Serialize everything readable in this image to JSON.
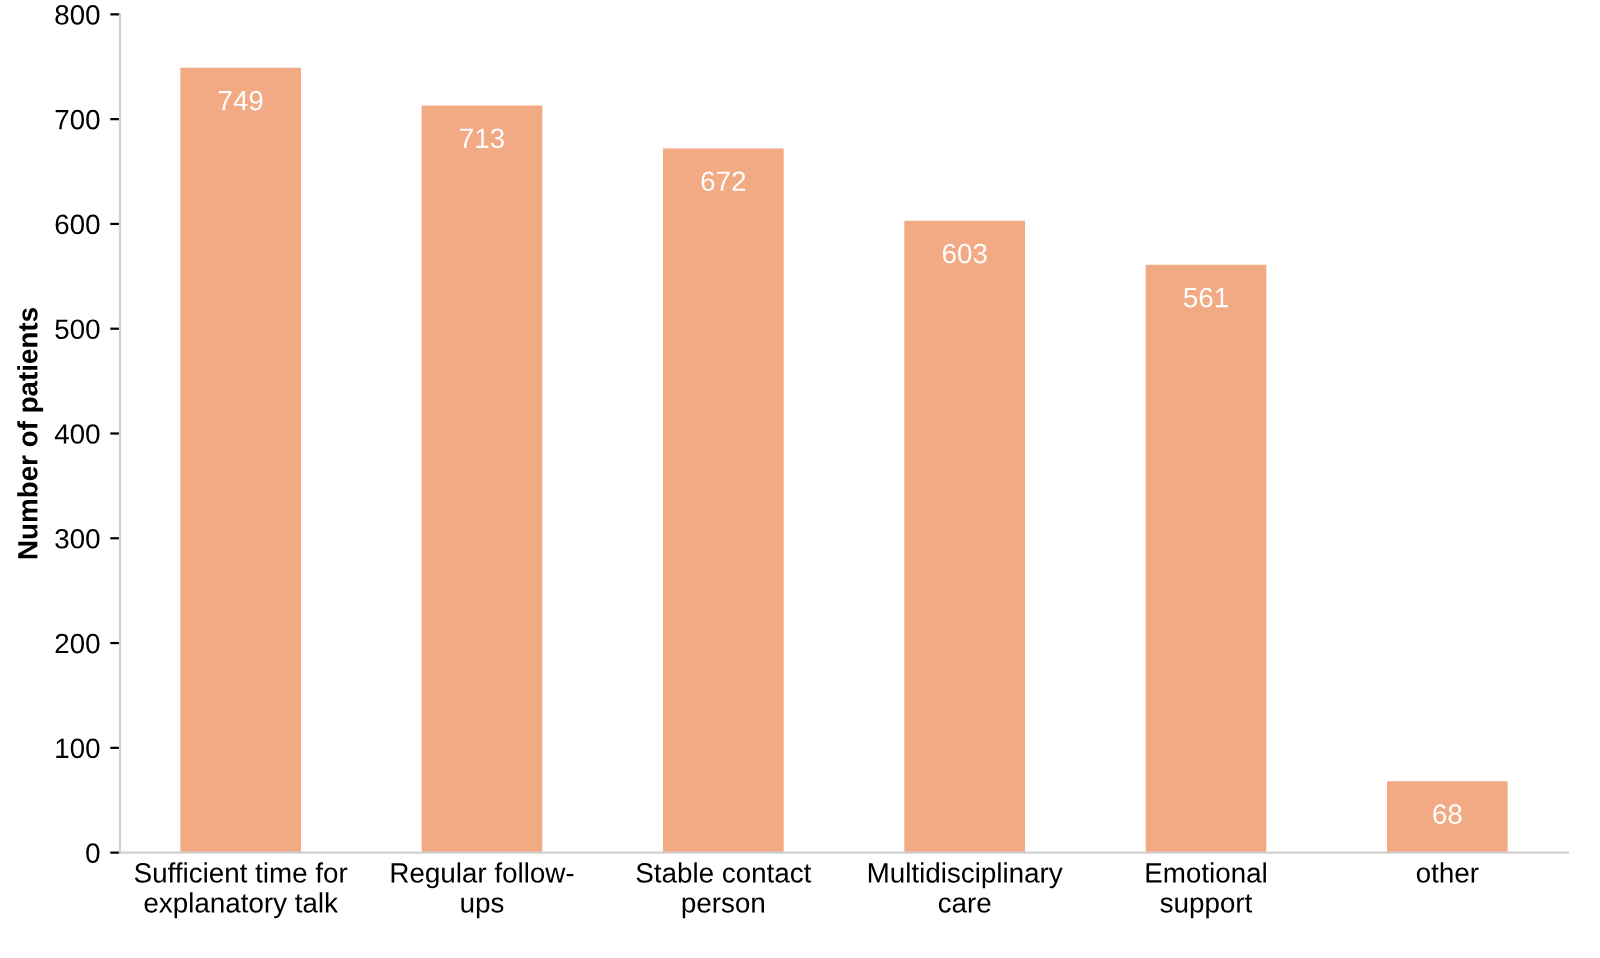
{
  "chart_data": {
    "type": "bar",
    "ylabel": "Number of patients",
    "categories": [
      "Sufficient time for\nexplanatory talk",
      "Regular follow-\nups",
      "Stable contact\nperson",
      "Multidisciplinary\ncare",
      "Emotional\nsupport",
      "other"
    ],
    "values": [
      749,
      713,
      672,
      603,
      561,
      68
    ],
    "color": "#f2aa84",
    "ylim": [
      0,
      800
    ],
    "yticks": [
      0,
      100,
      200,
      300,
      400,
      500,
      600,
      700,
      800
    ],
    "data_labels": true,
    "grid": false,
    "legend": false
  }
}
